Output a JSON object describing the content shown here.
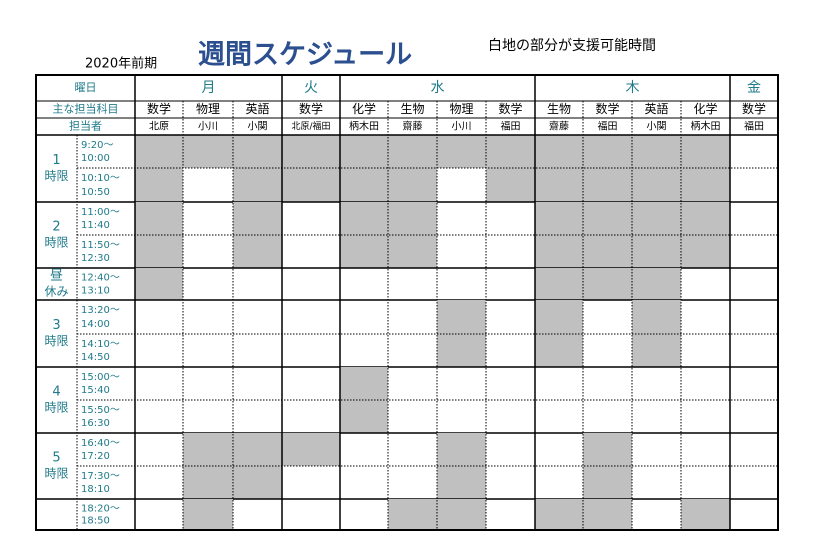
{
  "header": {
    "term": "2020年前期",
    "title": "週間スケジュール",
    "note": "白地の部分が支援可能時間"
  },
  "table": {
    "corner_day": "曜日",
    "corner_subject": "主な担当科目",
    "corner_teacher": "担当者",
    "days": [
      {
        "name": "月",
        "columns": [
          {
            "subject": "数学",
            "teacher": "北原"
          },
          {
            "subject": "物理",
            "teacher": "小川"
          },
          {
            "subject": "英語",
            "teacher": "小関"
          }
        ]
      },
      {
        "name": "火",
        "columns": [
          {
            "subject": "数学",
            "teacher": "北原/福田"
          }
        ]
      },
      {
        "name": "水",
        "columns": [
          {
            "subject": "化学",
            "teacher": "柄木田"
          },
          {
            "subject": "生物",
            "teacher": "齋藤"
          },
          {
            "subject": "物理",
            "teacher": "小川"
          },
          {
            "subject": "数学",
            "teacher": "福田"
          }
        ]
      },
      {
        "name": "木",
        "columns": [
          {
            "subject": "生物",
            "teacher": "齋藤"
          },
          {
            "subject": "数学",
            "teacher": "福田"
          },
          {
            "subject": "英語",
            "teacher": "小関"
          },
          {
            "subject": "化学",
            "teacher": "柄木田"
          }
        ]
      },
      {
        "name": "金",
        "columns": [
          {
            "subject": "数学",
            "teacher": "福田"
          }
        ]
      }
    ],
    "periods": [
      {
        "label": "1",
        "sub": "時限",
        "slots": [
          {
            "time": [
              "9:20～",
              "10:00"
            ],
            "shaded": [
              true,
              true,
              true,
              true,
              true,
              true,
              true,
              true,
              true,
              true,
              true,
              true,
              false
            ]
          },
          {
            "time": [
              "10:10～",
              "10:50"
            ],
            "shaded": [
              true,
              false,
              true,
              true,
              true,
              true,
              false,
              true,
              true,
              true,
              true,
              true,
              false
            ]
          }
        ]
      },
      {
        "label": "2",
        "sub": "時限",
        "slots": [
          {
            "time": [
              "11:00～",
              "11:40"
            ],
            "shaded": [
              true,
              false,
              true,
              false,
              true,
              true,
              false,
              false,
              true,
              true,
              true,
              true,
              false
            ]
          },
          {
            "time": [
              "11:50～",
              "12:30"
            ],
            "shaded": [
              true,
              false,
              true,
              false,
              true,
              true,
              false,
              false,
              true,
              true,
              true,
              true,
              false
            ]
          }
        ]
      },
      {
        "label": "昼",
        "sub": "休み",
        "slots": [
          {
            "time": [
              "12:40～",
              "13:10"
            ],
            "shaded": [
              true,
              false,
              false,
              false,
              false,
              false,
              false,
              false,
              true,
              true,
              true,
              false,
              false
            ]
          }
        ]
      },
      {
        "label": "3",
        "sub": "時限",
        "slots": [
          {
            "time": [
              "13:20～",
              "14:00"
            ],
            "shaded": [
              false,
              false,
              false,
              false,
              false,
              false,
              true,
              false,
              true,
              false,
              true,
              false,
              false
            ]
          },
          {
            "time": [
              "14:10～",
              "14:50"
            ],
            "shaded": [
              false,
              false,
              false,
              false,
              false,
              false,
              true,
              false,
              true,
              false,
              true,
              false,
              false
            ]
          }
        ]
      },
      {
        "label": "4",
        "sub": "時限",
        "slots": [
          {
            "time": [
              "15:00～",
              "15:40"
            ],
            "shaded": [
              false,
              false,
              false,
              false,
              true,
              false,
              false,
              false,
              false,
              false,
              false,
              false,
              false
            ]
          },
          {
            "time": [
              "15:50～",
              "16:30"
            ],
            "shaded": [
              false,
              false,
              false,
              false,
              true,
              false,
              false,
              false,
              false,
              false,
              false,
              false,
              false
            ]
          }
        ]
      },
      {
        "label": "5",
        "sub": "時限",
        "slots": [
          {
            "time": [
              "16:40～",
              "17:20"
            ],
            "shaded": [
              false,
              true,
              true,
              true,
              false,
              false,
              true,
              false,
              false,
              true,
              false,
              false,
              false
            ]
          },
          {
            "time": [
              "17:30～",
              "18:10"
            ],
            "shaded": [
              false,
              true,
              true,
              false,
              false,
              false,
              true,
              false,
              false,
              true,
              false,
              false,
              false
            ]
          }
        ]
      },
      {
        "slots": [
          {
            "time": [
              "18:20～",
              "18:50"
            ],
            "shaded": [
              false,
              true,
              false,
              false,
              false,
              true,
              true,
              false,
              true,
              true,
              false,
              true,
              false
            ]
          }
        ]
      }
    ]
  }
}
